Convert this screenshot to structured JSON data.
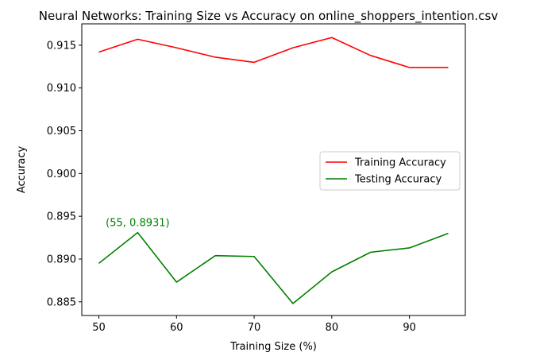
{
  "chart_data": {
    "type": "line",
    "title": "Neural Networks: Training Size vs Accuracy on online_shoppers_intention.csv",
    "xlabel": "Training Size (%)",
    "ylabel": "Accuracy",
    "x": [
      50,
      55,
      60,
      65,
      70,
      75,
      80,
      85,
      90,
      95
    ],
    "xlim": [
      47.8,
      97.2
    ],
    "ylim": [
      0.8834,
      0.9175
    ],
    "xticks": [
      50,
      60,
      70,
      80,
      90
    ],
    "xtick_labels": [
      "50",
      "60",
      "70",
      "80",
      "90"
    ],
    "yticks": [
      0.885,
      0.89,
      0.895,
      0.9,
      0.905,
      0.91,
      0.915
    ],
    "ytick_labels": [
      "0.885",
      "0.890",
      "0.895",
      "0.900",
      "0.905",
      "0.910",
      "0.915"
    ],
    "grid": false,
    "legend_position": "center-right",
    "series": [
      {
        "name": "Training Accuracy",
        "color": "#ff0000",
        "values": [
          0.9142,
          0.9157,
          0.9147,
          0.9136,
          0.913,
          0.9147,
          0.9159,
          0.9138,
          0.9124,
          0.9124
        ]
      },
      {
        "name": "Testing Accuracy",
        "color": "#008000",
        "values": [
          0.8895,
          0.8931,
          0.8873,
          0.8904,
          0.8903,
          0.8848,
          0.8885,
          0.8908,
          0.8913,
          0.893
        ]
      }
    ],
    "annotations": [
      {
        "text": "(55, 0.8931)",
        "x": 55,
        "y": 0.8931,
        "color": "#008000"
      }
    ]
  }
}
